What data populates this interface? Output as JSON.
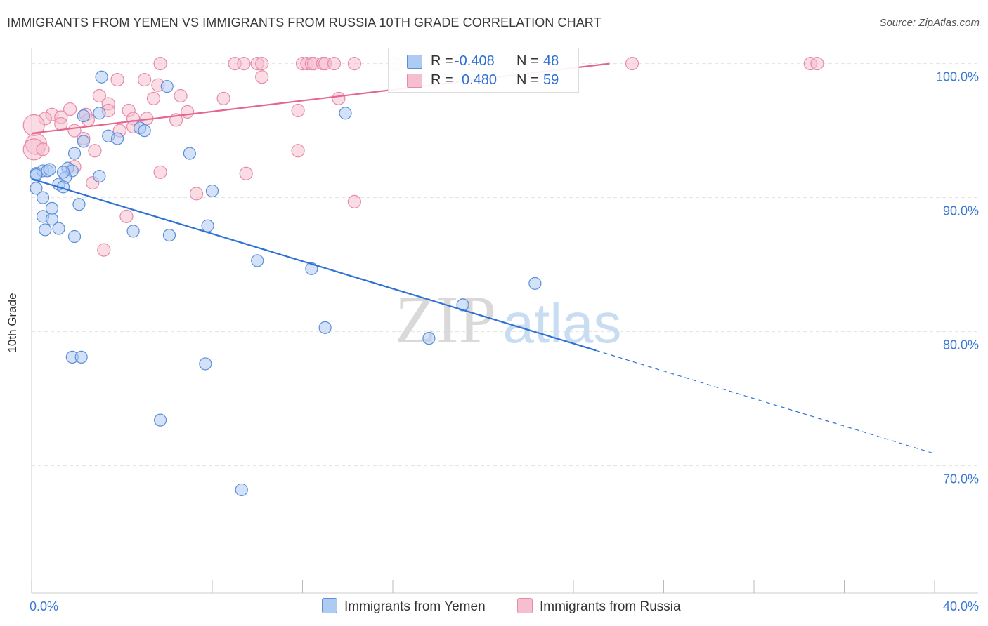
{
  "title": "IMMIGRANTS FROM YEMEN VS IMMIGRANTS FROM RUSSIA 10TH GRADE CORRELATION CHART",
  "source": "Source: ZipAtlas.com",
  "watermark": {
    "part1": "ZIP",
    "part2": "atlas"
  },
  "colors": {
    "yemen_fill": "#aecbf3",
    "yemen_stroke": "#5c8fd8",
    "yemen_line": "#2f72d4",
    "russia_fill": "#f6bfd0",
    "russia_stroke": "#e98aa9",
    "russia_line": "#e4668f",
    "tick_label": "#3a78d4",
    "grid": "#e2e2e2"
  },
  "legend": {
    "rows": [
      {
        "r_label": "R =",
        "r_value": "-0.408",
        "n_label": "N =",
        "n_value": "48"
      },
      {
        "r_label": "R =",
        "r_value": "0.480",
        "n_label": "N =",
        "n_value": "59"
      }
    ]
  },
  "bottom_legend": {
    "yemen": "Immigrants from Yemen",
    "russia": "Immigrants from Russia"
  },
  "chart_data": {
    "type": "scatter",
    "title": "IMMIGRANTS FROM YEMEN VS IMMIGRANTS FROM RUSSIA 10TH GRADE CORRELATION CHART",
    "xlabel": "",
    "ylabel": "10th Grade",
    "xlim": [
      0,
      40
    ],
    "ylim": [
      60.5,
      101.5
    ],
    "x_tick_labels": [
      "0.0%",
      "40.0%"
    ],
    "y_ticks": [
      70,
      80,
      90,
      100
    ],
    "y_tick_labels": [
      "70.0%",
      "80.0%",
      "90.0%",
      "100.0%"
    ],
    "grid": true,
    "series": [
      {
        "name": "Immigrants from Yemen",
        "r": -0.408,
        "n": 48,
        "trend": {
          "x0": 0.0,
          "y0": 91.4,
          "x1": 25.0,
          "y1": 78.6,
          "dash_to_x": 40.0,
          "dash_to_y": 70.9
        },
        "points": [
          [
            3.1,
            99.0
          ],
          [
            6.0,
            98.3
          ],
          [
            2.3,
            96.1
          ],
          [
            3.0,
            96.3
          ],
          [
            4.8,
            95.2
          ],
          [
            5.0,
            95.0
          ],
          [
            3.4,
            94.6
          ],
          [
            3.8,
            94.4
          ],
          [
            2.3,
            94.2
          ],
          [
            1.9,
            93.3
          ],
          [
            7.0,
            93.3
          ],
          [
            1.6,
            92.2
          ],
          [
            0.2,
            91.8
          ],
          [
            0.5,
            92.0
          ],
          [
            0.7,
            92.0
          ],
          [
            1.8,
            92.0
          ],
          [
            3.0,
            91.6
          ],
          [
            1.5,
            91.5
          ],
          [
            1.2,
            91.0
          ],
          [
            1.4,
            90.8
          ],
          [
            0.2,
            90.7
          ],
          [
            8.0,
            90.5
          ],
          [
            0.5,
            90.0
          ],
          [
            2.1,
            89.5
          ],
          [
            0.9,
            89.2
          ],
          [
            0.5,
            88.6
          ],
          [
            0.9,
            88.4
          ],
          [
            7.8,
            87.9
          ],
          [
            0.6,
            87.6
          ],
          [
            1.2,
            87.7
          ],
          [
            4.5,
            87.5
          ],
          [
            1.9,
            87.1
          ],
          [
            6.1,
            87.2
          ],
          [
            13.9,
            96.3
          ],
          [
            10.0,
            85.3
          ],
          [
            12.4,
            84.7
          ],
          [
            22.3,
            83.6
          ],
          [
            19.1,
            82.0
          ],
          [
            13.0,
            80.3
          ],
          [
            17.6,
            79.5
          ],
          [
            1.8,
            78.1
          ],
          [
            2.2,
            78.1
          ],
          [
            7.7,
            77.6
          ],
          [
            5.7,
            73.4
          ],
          [
            9.3,
            68.2
          ],
          [
            0.2,
            91.7
          ],
          [
            0.8,
            92.1
          ],
          [
            1.4,
            91.9
          ]
        ]
      },
      {
        "name": "Immigrants from Russia",
        "r": 0.48,
        "n": 59,
        "trend": {
          "x0": 0.0,
          "y0": 94.8,
          "x1": 25.6,
          "y1": 100.0
        },
        "points": [
          [
            5.7,
            100.0
          ],
          [
            9.0,
            100.0
          ],
          [
            9.4,
            100.0
          ],
          [
            10.0,
            100.0
          ],
          [
            10.2,
            100.0
          ],
          [
            12.0,
            100.0
          ],
          [
            12.2,
            100.0
          ],
          [
            12.4,
            100.0
          ],
          [
            12.5,
            100.0
          ],
          [
            12.9,
            100.0
          ],
          [
            13.0,
            100.0
          ],
          [
            13.4,
            100.0
          ],
          [
            14.3,
            100.0
          ],
          [
            16.1,
            100.0
          ],
          [
            26.6,
            100.0
          ],
          [
            34.5,
            100.0
          ],
          [
            34.8,
            100.0
          ],
          [
            10.2,
            99.0
          ],
          [
            3.8,
            98.8
          ],
          [
            5.0,
            98.8
          ],
          [
            5.6,
            98.4
          ],
          [
            3.0,
            97.6
          ],
          [
            6.6,
            97.6
          ],
          [
            5.4,
            97.4
          ],
          [
            8.5,
            97.4
          ],
          [
            13.6,
            97.4
          ],
          [
            3.4,
            97.0
          ],
          [
            1.7,
            96.6
          ],
          [
            3.4,
            96.5
          ],
          [
            2.4,
            96.2
          ],
          [
            4.3,
            96.5
          ],
          [
            6.9,
            96.4
          ],
          [
            0.9,
            96.2
          ],
          [
            1.3,
            96.0
          ],
          [
            4.5,
            95.9
          ],
          [
            0.6,
            95.9
          ],
          [
            5.1,
            95.9
          ],
          [
            2.5,
            95.8
          ],
          [
            6.4,
            95.8
          ],
          [
            11.8,
            96.5
          ],
          [
            1.3,
            95.5
          ],
          [
            0.1,
            95.4
          ],
          [
            3.9,
            95.0
          ],
          [
            4.5,
            95.3
          ],
          [
            1.9,
            95.0
          ],
          [
            2.3,
            94.4
          ],
          [
            0.2,
            94.0
          ],
          [
            0.1,
            93.6
          ],
          [
            0.5,
            93.6
          ],
          [
            2.8,
            93.5
          ],
          [
            11.8,
            93.5
          ],
          [
            1.9,
            92.3
          ],
          [
            5.7,
            91.9
          ],
          [
            9.5,
            91.8
          ],
          [
            2.7,
            91.1
          ],
          [
            7.3,
            90.3
          ],
          [
            14.3,
            89.7
          ],
          [
            4.2,
            88.6
          ],
          [
            3.2,
            86.1
          ]
        ]
      }
    ]
  }
}
